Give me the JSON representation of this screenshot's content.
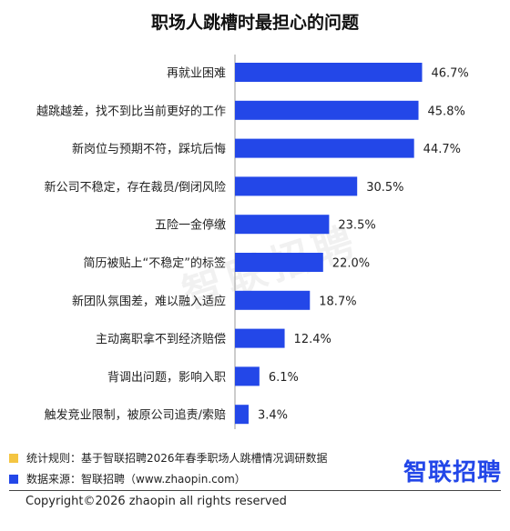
{
  "title": "职场人跳槽时最担心的问题",
  "watermark": "智联招聘",
  "colors": {
    "bar": "#2347E8",
    "note_square": "#F4C542",
    "source_square": "#2347E8",
    "brand": "#2347E8"
  },
  "chart_data": {
    "type": "bar",
    "orientation": "horizontal",
    "title": "职场人跳槽时最担心的问题",
    "categories": [
      "再就业困难",
      "越跳越差，找不到比当前更好的工作",
      "新岗位与预期不符，踩坑后悔",
      "新公司不稳定，存在裁员/倒闭风险",
      "五险一金停缴",
      "简历被贴上“不稳定”的标签",
      "新团队氛围差，难以融入适应",
      "主动离职拿不到经济赔偿",
      "背调出问题，影响入职",
      "触发竞业限制，被原公司追责/索赔"
    ],
    "values": [
      46.7,
      45.8,
      44.7,
      30.5,
      23.5,
      22.0,
      18.7,
      12.4,
      6.1,
      3.4
    ],
    "value_labels": [
      "46.7%",
      "45.8%",
      "44.7%",
      "30.5%",
      "23.5%",
      "22.0%",
      "18.7%",
      "12.4%",
      "6.1%",
      "3.4%"
    ],
    "unit": "%",
    "xlim": [
      0,
      50
    ],
    "grid": false,
    "legend": "none"
  },
  "notes": {
    "method": "统计规则：基于智联招聘2026年春季职场人跳槽情况调研数据",
    "source": "数据来源：智联招聘（www.zhaopin.com）"
  },
  "brand_logo_text": "智联招聘",
  "copyright": "Copyright©2026 zhaopin all rights reserved"
}
